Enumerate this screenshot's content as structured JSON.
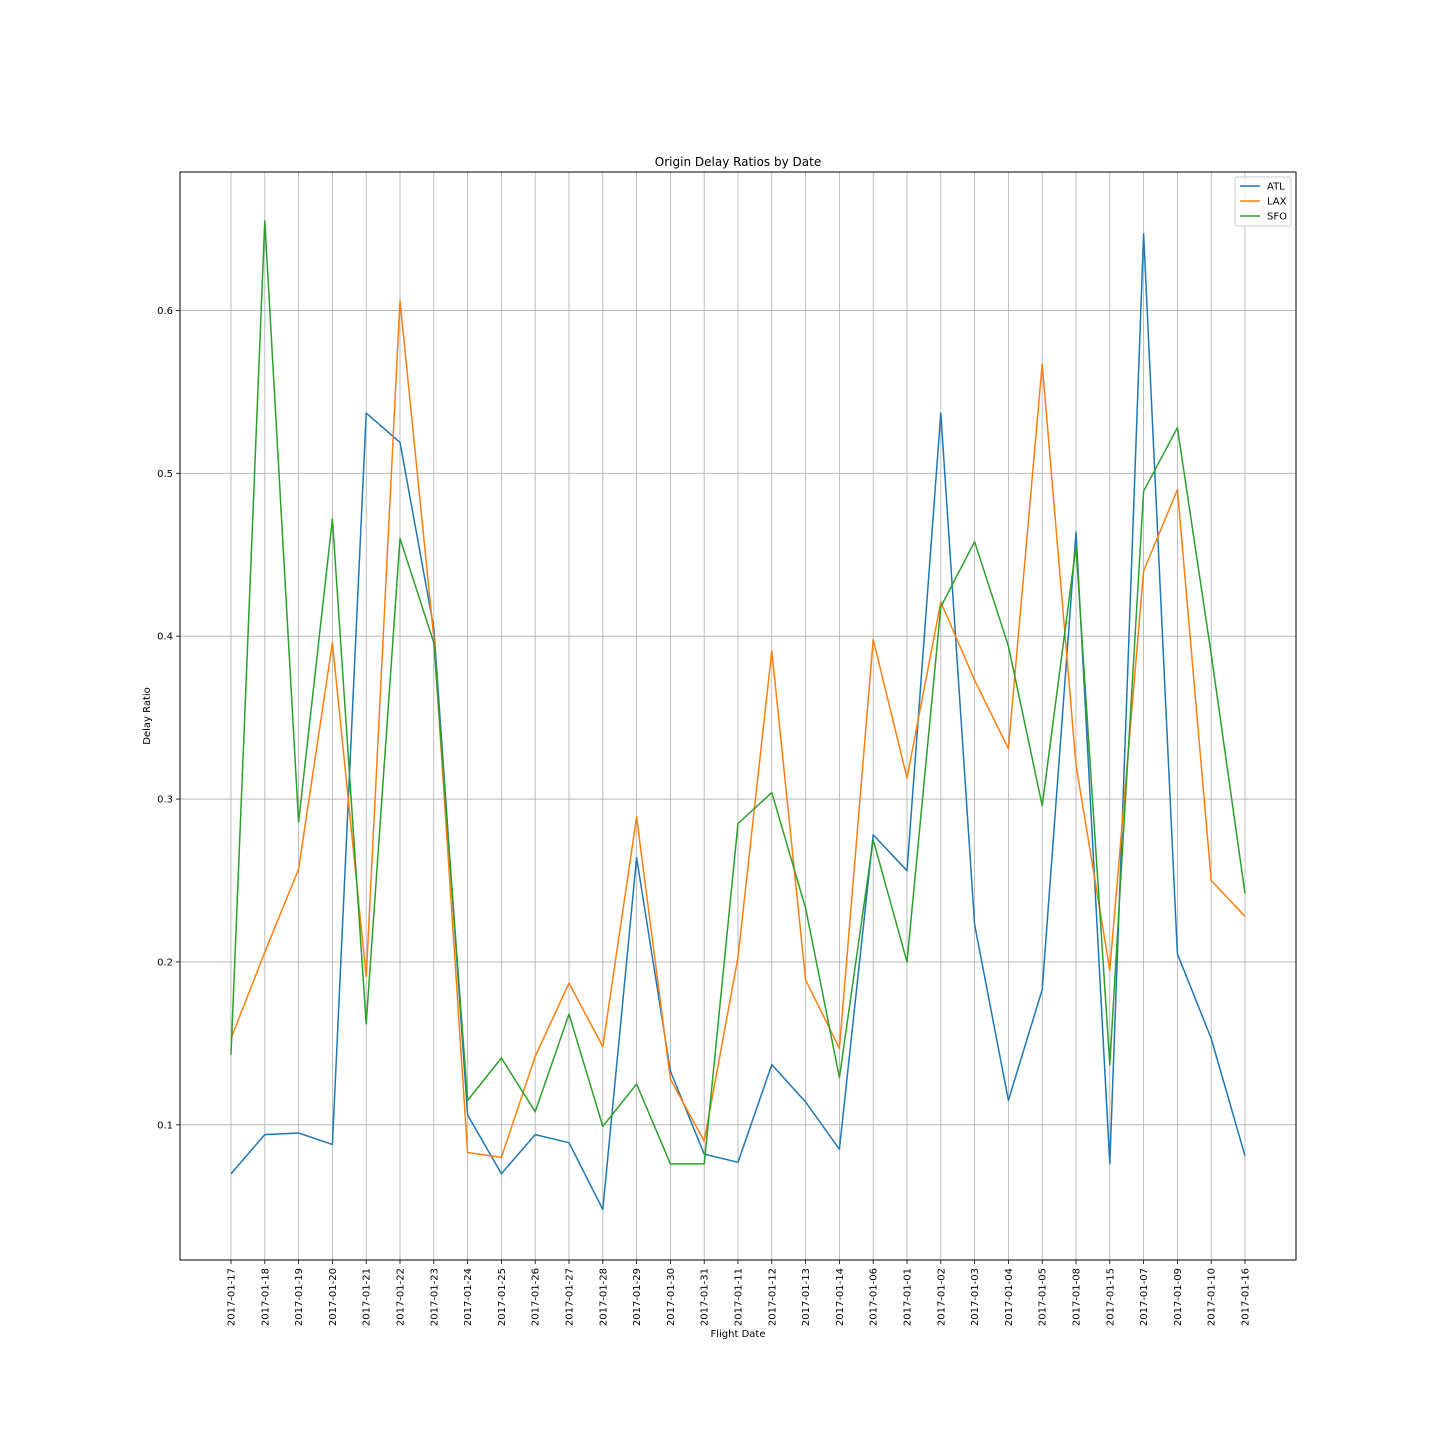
{
  "chart_data": {
    "type": "line",
    "title": "Origin Delay Ratios by Date",
    "xlabel": "Flight Date",
    "ylabel": "Delay Ratio",
    "categories": [
      "2017-01-17",
      "2017-01-18",
      "2017-01-19",
      "2017-01-20",
      "2017-01-21",
      "2017-01-22",
      "2017-01-23",
      "2017-01-24",
      "2017-01-25",
      "2017-01-26",
      "2017-01-27",
      "2017-01-28",
      "2017-01-29",
      "2017-01-30",
      "2017-01-31",
      "2017-01-11",
      "2017-01-12",
      "2017-01-13",
      "2017-01-14",
      "2017-01-06",
      "2017-01-01",
      "2017-01-02",
      "2017-01-03",
      "2017-01-04",
      "2017-01-05",
      "2017-01-08",
      "2017-01-15",
      "2017-01-07",
      "2017-01-09",
      "2017-01-10",
      "2017-01-16"
    ],
    "ylim": [
      0.017,
      0.685
    ],
    "yticks": [
      0.1,
      0.2,
      0.3,
      0.4,
      0.5,
      0.6
    ],
    "ytick_labels": [
      "0.1",
      "0.2",
      "0.3",
      "0.4",
      "0.5",
      "0.6"
    ],
    "grid": true,
    "legend_position": "top-right",
    "series": [
      {
        "name": "ATL",
        "color": "#1f77b4",
        "values": [
          0.07,
          0.094,
          0.095,
          0.088,
          0.537,
          0.519,
          0.405,
          0.106,
          0.07,
          0.094,
          0.089,
          0.048,
          0.264,
          0.133,
          0.082,
          0.077,
          0.137,
          0.114,
          0.085,
          0.278,
          0.256,
          0.537,
          0.223,
          0.115,
          0.183,
          0.464,
          0.076,
          0.647,
          0.205,
          0.153,
          0.081
        ]
      },
      {
        "name": "LAX",
        "color": "#ff7f0e",
        "values": [
          0.153,
          0.206,
          0.257,
          0.396,
          0.191,
          0.606,
          0.399,
          0.083,
          0.08,
          0.142,
          0.187,
          0.148,
          0.289,
          0.128,
          0.09,
          0.203,
          0.391,
          0.189,
          0.147,
          0.398,
          0.313,
          0.421,
          0.373,
          0.331,
          0.567,
          0.321,
          0.195,
          0.44,
          0.49,
          0.25,
          0.228
        ]
      },
      {
        "name": "SFO",
        "color": "#2ca02c",
        "values": [
          0.143,
          0.655,
          0.286,
          0.472,
          0.162,
          0.46,
          0.396,
          0.115,
          0.141,
          0.108,
          0.168,
          0.099,
          0.125,
          0.076,
          0.076,
          0.285,
          0.304,
          0.233,
          0.129,
          0.275,
          0.2,
          0.418,
          0.458,
          0.394,
          0.296,
          0.455,
          0.137,
          0.489,
          0.528,
          0.389,
          0.242
        ]
      }
    ]
  }
}
